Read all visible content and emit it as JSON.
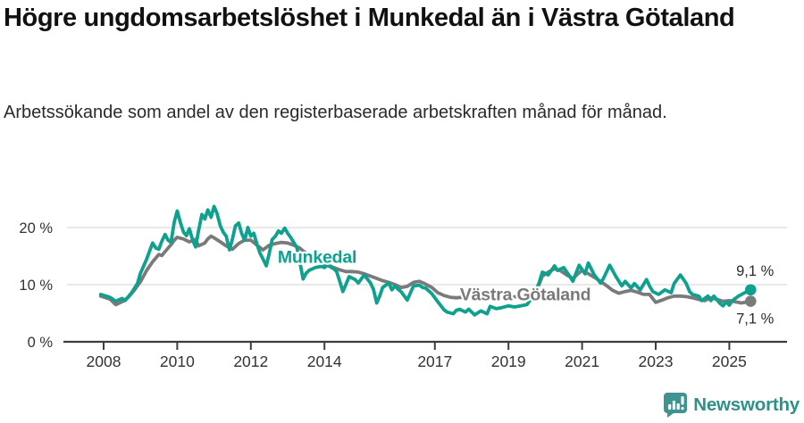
{
  "header": {
    "title": "Högre ungdomsarbetslöshet i Munkedal än i Västra Götaland",
    "subtitle": "Arbetssökande som andel av den registerbaserade arbetskraften månad för månad."
  },
  "chart_data": {
    "type": "line",
    "unit": "%",
    "title": "Högre ungdomsarbetslöshet i Munkedal än i Västra Götaland",
    "x_axis": {
      "range": [
        2007.9,
        2025.9
      ],
      "ticks": [
        {
          "value": 2008,
          "label": "2008"
        },
        {
          "value": 2010,
          "label": "2010"
        },
        {
          "value": 2012,
          "label": "2012"
        },
        {
          "value": 2014,
          "label": "2014"
        },
        {
          "value": 2017,
          "label": "2017"
        },
        {
          "value": 2019,
          "label": "2019"
        },
        {
          "value": 2021,
          "label": "2021"
        },
        {
          "value": 2023,
          "label": "2023"
        },
        {
          "value": 2025,
          "label": "2025"
        }
      ]
    },
    "y_axis": {
      "range": [
        0,
        25
      ],
      "grid": true,
      "ticks": [
        {
          "value": 0,
          "label": "0 %"
        },
        {
          "value": 10,
          "label": "10 %"
        },
        {
          "value": 20,
          "label": "20 %"
        }
      ]
    },
    "style": {
      "grid_color": "#dcdcdc",
      "axis_color": "#3d3d3d",
      "tick_text_color": "#333333",
      "value_label_color": "#2b2b2b"
    },
    "series": [
      {
        "name": "Munkedal",
        "color": "#10a08e",
        "end_value": 9.1,
        "end_label": "9,1 %",
        "end_label_position": "above",
        "label": {
          "x": 2012.73,
          "y": 13.8
        },
        "points": [
          [
            2007.92,
            8.3
          ],
          [
            2008.17,
            7.8
          ],
          [
            2008.33,
            7.1
          ],
          [
            2008.5,
            7.6
          ],
          [
            2008.58,
            7.2
          ],
          [
            2008.75,
            8.5
          ],
          [
            2008.92,
            10.2
          ],
          [
            2009.0,
            12.0
          ],
          [
            2009.17,
            14.5
          ],
          [
            2009.33,
            17.3
          ],
          [
            2009.42,
            16.4
          ],
          [
            2009.5,
            16.2
          ],
          [
            2009.58,
            17.6
          ],
          [
            2009.67,
            18.8
          ],
          [
            2009.75,
            17.8
          ],
          [
            2009.83,
            17.4
          ],
          [
            2009.92,
            21.0
          ],
          [
            2010.0,
            22.9
          ],
          [
            2010.08,
            21.0
          ],
          [
            2010.17,
            19.2
          ],
          [
            2010.25,
            18.6
          ],
          [
            2010.33,
            19.8
          ],
          [
            2010.42,
            17.8
          ],
          [
            2010.5,
            16.6
          ],
          [
            2010.58,
            19.5
          ],
          [
            2010.67,
            22.3
          ],
          [
            2010.75,
            21.5
          ],
          [
            2010.83,
            23.1
          ],
          [
            2010.92,
            21.8
          ],
          [
            2011.0,
            23.7
          ],
          [
            2011.08,
            22.5
          ],
          [
            2011.17,
            20.3
          ],
          [
            2011.25,
            19.2
          ],
          [
            2011.33,
            18.5
          ],
          [
            2011.42,
            16.1
          ],
          [
            2011.5,
            18.0
          ],
          [
            2011.58,
            20.3
          ],
          [
            2011.67,
            20.8
          ],
          [
            2011.75,
            19.0
          ],
          [
            2011.83,
            17.8
          ],
          [
            2011.92,
            20.0
          ],
          [
            2012.0,
            18.5
          ],
          [
            2012.08,
            19.0
          ],
          [
            2012.17,
            17.0
          ],
          [
            2012.25,
            15.5
          ],
          [
            2012.33,
            14.5
          ],
          [
            2012.42,
            13.3
          ],
          [
            2012.5,
            15.5
          ],
          [
            2012.58,
            17.9
          ],
          [
            2012.67,
            18.5
          ],
          [
            2012.75,
            19.4
          ],
          [
            2012.83,
            19.0
          ],
          [
            2012.92,
            19.9
          ],
          [
            2013.0,
            19.0
          ],
          [
            2013.08,
            18.3
          ],
          [
            2013.25,
            16.5
          ],
          [
            2013.33,
            14.0
          ],
          [
            2013.42,
            11.0
          ],
          [
            2013.5,
            12.0
          ],
          [
            2013.58,
            12.5
          ],
          [
            2013.75,
            13.0
          ],
          [
            2013.92,
            13.2
          ],
          [
            2014.0,
            13.0
          ],
          [
            2014.08,
            13.4
          ],
          [
            2014.25,
            12.8
          ],
          [
            2014.33,
            12.3
          ],
          [
            2014.42,
            10.5
          ],
          [
            2014.5,
            8.8
          ],
          [
            2014.58,
            10.0
          ],
          [
            2014.67,
            11.4
          ],
          [
            2014.83,
            10.9
          ],
          [
            2014.92,
            10.3
          ],
          [
            2015.0,
            11.0
          ],
          [
            2015.08,
            11.7
          ],
          [
            2015.25,
            10.3
          ],
          [
            2015.33,
            9.2
          ],
          [
            2015.42,
            6.8
          ],
          [
            2015.5,
            8.0
          ],
          [
            2015.58,
            9.5
          ],
          [
            2015.75,
            10.3
          ],
          [
            2015.83,
            9.1
          ],
          [
            2015.92,
            9.8
          ],
          [
            2016.0,
            9.2
          ],
          [
            2016.08,
            8.8
          ],
          [
            2016.25,
            7.3
          ],
          [
            2016.42,
            9.8
          ],
          [
            2016.58,
            9.9
          ],
          [
            2016.67,
            9.5
          ],
          [
            2016.75,
            9.4
          ],
          [
            2016.92,
            8.4
          ],
          [
            2017.08,
            7.0
          ],
          [
            2017.25,
            5.6
          ],
          [
            2017.33,
            5.2
          ],
          [
            2017.5,
            4.9
          ],
          [
            2017.58,
            5.5
          ],
          [
            2017.67,
            5.7
          ],
          [
            2017.83,
            5.2
          ],
          [
            2017.92,
            5.7
          ],
          [
            2018.08,
            4.7
          ],
          [
            2018.25,
            5.4
          ],
          [
            2018.42,
            4.9
          ],
          [
            2018.5,
            6.2
          ],
          [
            2018.67,
            5.8
          ],
          [
            2018.83,
            6.0
          ],
          [
            2019.0,
            6.3
          ],
          [
            2019.17,
            6.1
          ],
          [
            2019.33,
            6.3
          ],
          [
            2019.5,
            6.5
          ],
          [
            2019.67,
            8.0
          ],
          [
            2019.83,
            10.3
          ],
          [
            2019.92,
            12.2
          ],
          [
            2020.08,
            11.7
          ],
          [
            2020.25,
            13.3
          ],
          [
            2020.33,
            12.5
          ],
          [
            2020.5,
            13.0
          ],
          [
            2020.67,
            11.4
          ],
          [
            2020.75,
            10.6
          ],
          [
            2020.92,
            13.4
          ],
          [
            2021.08,
            11.9
          ],
          [
            2021.17,
            13.8
          ],
          [
            2021.33,
            11.7
          ],
          [
            2021.5,
            10.3
          ],
          [
            2021.58,
            11.1
          ],
          [
            2021.75,
            13.4
          ],
          [
            2021.92,
            11.4
          ],
          [
            2022.08,
            9.8
          ],
          [
            2022.17,
            10.6
          ],
          [
            2022.33,
            9.4
          ],
          [
            2022.42,
            10.2
          ],
          [
            2022.58,
            9.1
          ],
          [
            2022.75,
            10.9
          ],
          [
            2022.83,
            9.8
          ],
          [
            2022.92,
            8.8
          ],
          [
            2023.08,
            8.3
          ],
          [
            2023.25,
            9.1
          ],
          [
            2023.42,
            8.6
          ],
          [
            2023.5,
            10.2
          ],
          [
            2023.67,
            11.7
          ],
          [
            2023.83,
            10.2
          ],
          [
            2023.92,
            8.8
          ],
          [
            2024.0,
            8.3
          ],
          [
            2024.17,
            8.0
          ],
          [
            2024.25,
            7.2
          ],
          [
            2024.42,
            8.0
          ],
          [
            2024.5,
            7.2
          ],
          [
            2024.58,
            8.0
          ],
          [
            2024.75,
            6.7
          ],
          [
            2024.83,
            6.3
          ],
          [
            2024.92,
            7.0
          ],
          [
            2025.0,
            6.4
          ],
          [
            2025.08,
            7.2
          ],
          [
            2025.25,
            8.0
          ],
          [
            2025.42,
            8.6
          ],
          [
            2025.58,
            9.1
          ]
        ]
      },
      {
        "name": "Västra Götaland",
        "color": "#7a7a7a",
        "end_value": 7.1,
        "end_label": "7,1 %",
        "end_label_position": "below",
        "label": {
          "x": 2017.68,
          "y": 7.3
        },
        "points": [
          [
            2007.92,
            8.0
          ],
          [
            2008.17,
            7.5
          ],
          [
            2008.33,
            6.5
          ],
          [
            2008.5,
            7.0
          ],
          [
            2008.67,
            7.8
          ],
          [
            2008.83,
            9.0
          ],
          [
            2008.92,
            9.8
          ],
          [
            2009.0,
            10.5
          ],
          [
            2009.17,
            12.5
          ],
          [
            2009.33,
            14.0
          ],
          [
            2009.5,
            15.3
          ],
          [
            2009.58,
            15.1
          ],
          [
            2009.67,
            15.8
          ],
          [
            2009.83,
            17.0
          ],
          [
            2009.92,
            17.8
          ],
          [
            2010.0,
            18.3
          ],
          [
            2010.17,
            18.0
          ],
          [
            2010.33,
            17.5
          ],
          [
            2010.5,
            17.9
          ],
          [
            2010.58,
            16.8
          ],
          [
            2010.75,
            17.3
          ],
          [
            2010.83,
            18.0
          ],
          [
            2010.92,
            18.5
          ],
          [
            2011.0,
            18.2
          ],
          [
            2011.17,
            17.5
          ],
          [
            2011.33,
            16.8
          ],
          [
            2011.5,
            16.2
          ],
          [
            2011.67,
            17.2
          ],
          [
            2011.83,
            17.8
          ],
          [
            2012.0,
            17.8
          ],
          [
            2012.17,
            16.9
          ],
          [
            2012.33,
            16.1
          ],
          [
            2012.5,
            16.9
          ],
          [
            2012.67,
            17.2
          ],
          [
            2012.83,
            17.4
          ],
          [
            2013.0,
            17.3
          ],
          [
            2013.17,
            16.9
          ],
          [
            2013.33,
            16.4
          ],
          [
            2013.42,
            15.9
          ],
          [
            2013.58,
            15.2
          ],
          [
            2013.67,
            14.6
          ],
          [
            2013.83,
            14.0
          ],
          [
            2013.92,
            13.8
          ],
          [
            2014.08,
            13.5
          ],
          [
            2014.25,
            13.0
          ],
          [
            2014.42,
            12.6
          ],
          [
            2014.58,
            12.3
          ],
          [
            2014.75,
            12.3
          ],
          [
            2014.92,
            12.2
          ],
          [
            2015.08,
            11.9
          ],
          [
            2015.25,
            11.5
          ],
          [
            2015.42,
            11.1
          ],
          [
            2015.58,
            10.7
          ],
          [
            2015.75,
            10.4
          ],
          [
            2015.92,
            10.0
          ],
          [
            2016.08,
            9.5
          ],
          [
            2016.25,
            9.7
          ],
          [
            2016.42,
            10.4
          ],
          [
            2016.58,
            10.6
          ],
          [
            2016.75,
            10.1
          ],
          [
            2016.92,
            9.5
          ],
          [
            2017.08,
            8.6
          ],
          [
            2017.25,
            8.1
          ],
          [
            2017.42,
            7.8
          ],
          [
            2017.58,
            7.7
          ],
          [
            2017.75,
            7.8
          ],
          [
            2017.92,
            7.9
          ],
          [
            2018.08,
            7.8
          ],
          [
            2018.33,
            7.6
          ],
          [
            2018.58,
            7.5
          ],
          [
            2018.83,
            7.7
          ],
          [
            2019.0,
            7.8
          ],
          [
            2019.25,
            7.9
          ],
          [
            2019.5,
            8.0
          ],
          [
            2019.67,
            8.5
          ],
          [
            2019.83,
            10.0
          ],
          [
            2019.92,
            11.5
          ],
          [
            2020.08,
            12.2
          ],
          [
            2020.25,
            12.8
          ],
          [
            2020.42,
            12.4
          ],
          [
            2020.58,
            11.7
          ],
          [
            2020.75,
            11.1
          ],
          [
            2020.92,
            12.1
          ],
          [
            2021.0,
            12.5
          ],
          [
            2021.17,
            11.9
          ],
          [
            2021.33,
            11.3
          ],
          [
            2021.5,
            10.6
          ],
          [
            2021.67,
            9.8
          ],
          [
            2021.83,
            9.0
          ],
          [
            2022.0,
            8.5
          ],
          [
            2022.17,
            8.8
          ],
          [
            2022.33,
            9.0
          ],
          [
            2022.5,
            8.7
          ],
          [
            2022.67,
            8.3
          ],
          [
            2022.83,
            8.3
          ],
          [
            2023.0,
            6.9
          ],
          [
            2023.17,
            7.3
          ],
          [
            2023.33,
            7.7
          ],
          [
            2023.5,
            8.0
          ],
          [
            2023.67,
            8.0
          ],
          [
            2023.83,
            7.9
          ],
          [
            2024.0,
            7.7
          ],
          [
            2024.17,
            7.4
          ],
          [
            2024.33,
            7.2
          ],
          [
            2024.5,
            7.7
          ],
          [
            2024.67,
            7.4
          ],
          [
            2024.83,
            7.1
          ],
          [
            2025.0,
            7.2
          ],
          [
            2025.17,
            7.0
          ],
          [
            2025.33,
            6.8
          ],
          [
            2025.58,
            7.1
          ]
        ]
      }
    ]
  },
  "footer": {
    "brand": "Newsworthy",
    "icon": "speech-bubble-bar-chart-icon",
    "brand_color": "#2f908a",
    "icon_color": "#3f9492"
  }
}
